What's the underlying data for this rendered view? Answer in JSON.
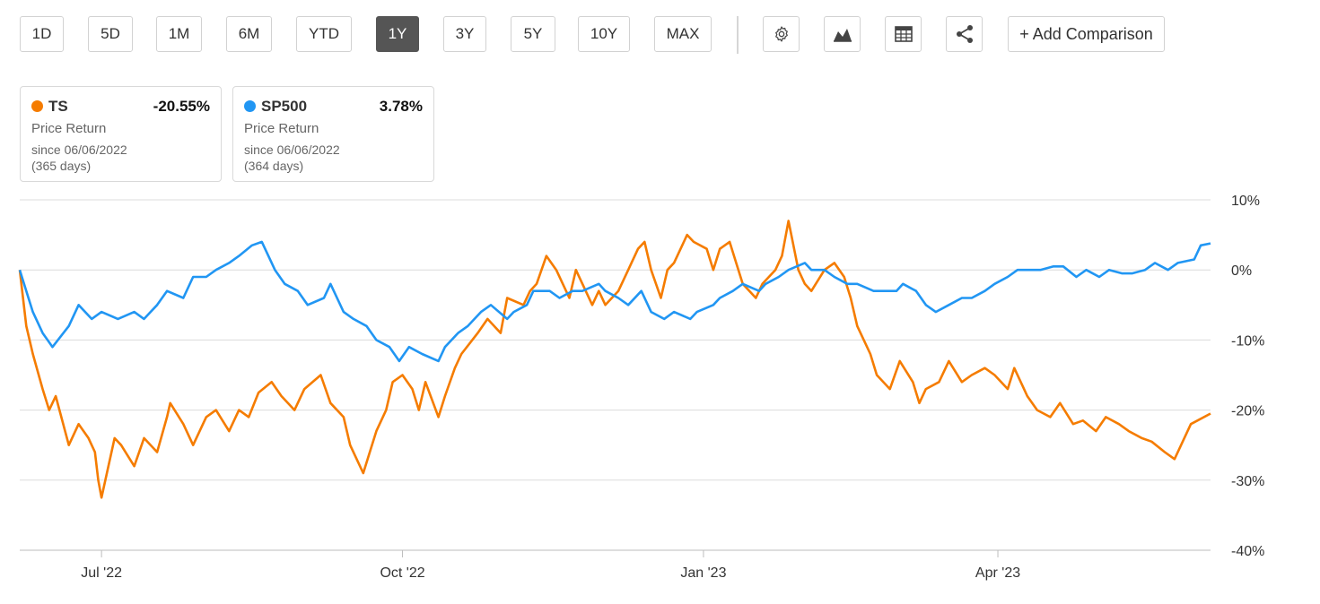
{
  "toolbar": {
    "ranges": [
      "1D",
      "5D",
      "1M",
      "6M",
      "YTD",
      "1Y",
      "3Y",
      "5Y",
      "10Y",
      "MAX"
    ],
    "active_range": "1Y",
    "icons": [
      "gear-icon",
      "chart-type-icon",
      "table-icon",
      "share-icon"
    ],
    "add_comparison_label": "+ Add Comparison"
  },
  "cards": [
    {
      "symbol": "TS",
      "change": "-20.55%",
      "label": "Price Return",
      "since": "since 06/06/2022",
      "days": "(365 days)",
      "color": "#f57c00"
    },
    {
      "symbol": "SP500",
      "change": "3.78%",
      "label": "Price Return",
      "since": "since 06/06/2022",
      "days": "(364 days)",
      "color": "#2196f3"
    }
  ],
  "chart_data": {
    "type": "line",
    "x_start": "2022-06-06",
    "x_end": "2023-06-05",
    "y_unit": "%",
    "ylim": [
      -40,
      10
    ],
    "yticks": [
      10,
      0,
      -10,
      -20,
      -30,
      -40
    ],
    "ytick_labels": [
      "10%",
      "0%",
      "-10%",
      "-20%",
      "-30%",
      "-40%"
    ],
    "xticks": [
      "2022-07-01",
      "2022-10-01",
      "2023-01-01",
      "2023-04-01"
    ],
    "xtick_labels": [
      "Jul '22",
      "Oct '22",
      "Jan '23",
      "Apr '23"
    ],
    "grid": true,
    "series": [
      {
        "name": "TS",
        "color": "#f57c00",
        "points": [
          [
            "2022-06-06",
            0
          ],
          [
            "2022-06-08",
            -8
          ],
          [
            "2022-06-10",
            -12
          ],
          [
            "2022-06-13",
            -17
          ],
          [
            "2022-06-15",
            -20
          ],
          [
            "2022-06-17",
            -18
          ],
          [
            "2022-06-21",
            -25
          ],
          [
            "2022-06-24",
            -22
          ],
          [
            "2022-06-27",
            -24
          ],
          [
            "2022-06-29",
            -26
          ],
          [
            "2022-06-30",
            -30
          ],
          [
            "2022-07-01",
            -32.5
          ],
          [
            "2022-07-05",
            -24
          ],
          [
            "2022-07-07",
            -25
          ],
          [
            "2022-07-11",
            -28
          ],
          [
            "2022-07-14",
            -24
          ],
          [
            "2022-07-18",
            -26
          ],
          [
            "2022-07-21",
            -21
          ],
          [
            "2022-07-22",
            -19
          ],
          [
            "2022-07-26",
            -22
          ],
          [
            "2022-07-29",
            -25
          ],
          [
            "2022-08-02",
            -21
          ],
          [
            "2022-08-05",
            -20
          ],
          [
            "2022-08-09",
            -23
          ],
          [
            "2022-08-12",
            -20
          ],
          [
            "2022-08-15",
            -21
          ],
          [
            "2022-08-18",
            -17.5
          ],
          [
            "2022-08-22",
            -16
          ],
          [
            "2022-08-25",
            -18
          ],
          [
            "2022-08-29",
            -20
          ],
          [
            "2022-09-01",
            -17
          ],
          [
            "2022-09-06",
            -15
          ],
          [
            "2022-09-09",
            -19
          ],
          [
            "2022-09-13",
            -21
          ],
          [
            "2022-09-15",
            -25
          ],
          [
            "2022-09-19",
            -29
          ],
          [
            "2022-09-21",
            -26
          ],
          [
            "2022-09-23",
            -23
          ],
          [
            "2022-09-26",
            -20
          ],
          [
            "2022-09-28",
            -16
          ],
          [
            "2022-10-01",
            -15
          ],
          [
            "2022-10-04",
            -17
          ],
          [
            "2022-10-06",
            -20
          ],
          [
            "2022-10-08",
            -16
          ],
          [
            "2022-10-12",
            -21
          ],
          [
            "2022-10-14",
            -18
          ],
          [
            "2022-10-17",
            -14
          ],
          [
            "2022-10-19",
            -12
          ],
          [
            "2022-10-24",
            -9
          ],
          [
            "2022-10-27",
            -7
          ],
          [
            "2022-10-31",
            -9
          ],
          [
            "2022-11-02",
            -4
          ],
          [
            "2022-11-07",
            -5
          ],
          [
            "2022-11-09",
            -3
          ],
          [
            "2022-11-11",
            -2
          ],
          [
            "2022-11-14",
            2
          ],
          [
            "2022-11-17",
            0
          ],
          [
            "2022-11-21",
            -4
          ],
          [
            "2022-11-23",
            0
          ],
          [
            "2022-11-28",
            -5
          ],
          [
            "2022-11-30",
            -3
          ],
          [
            "2022-12-02",
            -5
          ],
          [
            "2022-12-06",
            -3
          ],
          [
            "2022-12-09",
            0
          ],
          [
            "2022-12-12",
            3
          ],
          [
            "2022-12-14",
            4
          ],
          [
            "2022-12-16",
            0
          ],
          [
            "2022-12-19",
            -4
          ],
          [
            "2022-12-21",
            0
          ],
          [
            "2022-12-23",
            1
          ],
          [
            "2022-12-27",
            5
          ],
          [
            "2022-12-29",
            4
          ],
          [
            "2023-01-02",
            3
          ],
          [
            "2023-01-04",
            0
          ],
          [
            "2023-01-06",
            3
          ],
          [
            "2023-01-09",
            4
          ],
          [
            "2023-01-11",
            1
          ],
          [
            "2023-01-13",
            -2
          ],
          [
            "2023-01-17",
            -4
          ],
          [
            "2023-01-19",
            -2
          ],
          [
            "2023-01-23",
            0
          ],
          [
            "2023-01-25",
            2
          ],
          [
            "2023-01-27",
            7
          ],
          [
            "2023-01-30",
            0
          ],
          [
            "2023-02-01",
            -2
          ],
          [
            "2023-02-03",
            -3
          ],
          [
            "2023-02-07",
            0
          ],
          [
            "2023-02-10",
            1
          ],
          [
            "2023-02-13",
            -1
          ],
          [
            "2023-02-15",
            -4
          ],
          [
            "2023-02-17",
            -8
          ],
          [
            "2023-02-21",
            -12
          ],
          [
            "2023-02-23",
            -15
          ],
          [
            "2023-02-27",
            -17
          ],
          [
            "2023-03-02",
            -13
          ],
          [
            "2023-03-06",
            -16
          ],
          [
            "2023-03-08",
            -19
          ],
          [
            "2023-03-10",
            -17
          ],
          [
            "2023-03-14",
            -16
          ],
          [
            "2023-03-17",
            -13
          ],
          [
            "2023-03-21",
            -16
          ],
          [
            "2023-03-24",
            -15
          ],
          [
            "2023-03-28",
            -14
          ],
          [
            "2023-03-31",
            -15
          ],
          [
            "2023-04-04",
            -17
          ],
          [
            "2023-04-06",
            -14
          ],
          [
            "2023-04-10",
            -18
          ],
          [
            "2023-04-13",
            -20
          ],
          [
            "2023-04-17",
            -21
          ],
          [
            "2023-04-20",
            -19
          ],
          [
            "2023-04-24",
            -22
          ],
          [
            "2023-04-27",
            -21.5
          ],
          [
            "2023-05-01",
            -23
          ],
          [
            "2023-05-04",
            -21
          ],
          [
            "2023-05-08",
            -22
          ],
          [
            "2023-05-11",
            -23
          ],
          [
            "2023-05-15",
            -24
          ],
          [
            "2023-05-18",
            -24.5
          ],
          [
            "2023-05-22",
            -26
          ],
          [
            "2023-05-25",
            -27
          ],
          [
            "2023-05-30",
            -22
          ],
          [
            "2023-06-01",
            -21.5
          ],
          [
            "2023-06-05",
            -20.5
          ]
        ]
      },
      {
        "name": "SP500",
        "color": "#2196f3",
        "points": [
          [
            "2022-06-06",
            0
          ],
          [
            "2022-06-08",
            -3
          ],
          [
            "2022-06-10",
            -6
          ],
          [
            "2022-06-13",
            -9
          ],
          [
            "2022-06-16",
            -11
          ],
          [
            "2022-06-21",
            -8
          ],
          [
            "2022-06-24",
            -5
          ],
          [
            "2022-06-28",
            -7
          ],
          [
            "2022-07-01",
            -6
          ],
          [
            "2022-07-06",
            -7
          ],
          [
            "2022-07-11",
            -6
          ],
          [
            "2022-07-14",
            -7
          ],
          [
            "2022-07-18",
            -5
          ],
          [
            "2022-07-21",
            -3
          ],
          [
            "2022-07-26",
            -4
          ],
          [
            "2022-07-29",
            -1
          ],
          [
            "2022-08-02",
            -1
          ],
          [
            "2022-08-05",
            0
          ],
          [
            "2022-08-09",
            1
          ],
          [
            "2022-08-12",
            2
          ],
          [
            "2022-08-16",
            3.5
          ],
          [
            "2022-08-19",
            4
          ],
          [
            "2022-08-23",
            0
          ],
          [
            "2022-08-26",
            -2
          ],
          [
            "2022-08-30",
            -3
          ],
          [
            "2022-09-02",
            -5
          ],
          [
            "2022-09-07",
            -4
          ],
          [
            "2022-09-09",
            -2
          ],
          [
            "2022-09-13",
            -6
          ],
          [
            "2022-09-16",
            -7
          ],
          [
            "2022-09-20",
            -8
          ],
          [
            "2022-09-23",
            -10
          ],
          [
            "2022-09-27",
            -11
          ],
          [
            "2022-09-30",
            -13
          ],
          [
            "2022-10-03",
            -11
          ],
          [
            "2022-10-07",
            -12
          ],
          [
            "2022-10-12",
            -13
          ],
          [
            "2022-10-14",
            -11
          ],
          [
            "2022-10-18",
            -9
          ],
          [
            "2022-10-21",
            -8
          ],
          [
            "2022-10-25",
            -6
          ],
          [
            "2022-10-28",
            -5
          ],
          [
            "2022-11-02",
            -7
          ],
          [
            "2022-11-04",
            -6
          ],
          [
            "2022-11-08",
            -5
          ],
          [
            "2022-11-10",
            -3
          ],
          [
            "2022-11-15",
            -3
          ],
          [
            "2022-11-18",
            -4
          ],
          [
            "2022-11-22",
            -3
          ],
          [
            "2022-11-25",
            -3
          ],
          [
            "2022-11-30",
            -2
          ],
          [
            "2022-12-02",
            -3
          ],
          [
            "2022-12-06",
            -4
          ],
          [
            "2022-12-09",
            -5
          ],
          [
            "2022-12-13",
            -3
          ],
          [
            "2022-12-16",
            -6
          ],
          [
            "2022-12-20",
            -7
          ],
          [
            "2022-12-23",
            -6
          ],
          [
            "2022-12-28",
            -7
          ],
          [
            "2022-12-30",
            -6
          ],
          [
            "2023-01-04",
            -5
          ],
          [
            "2023-01-06",
            -4
          ],
          [
            "2023-01-10",
            -3
          ],
          [
            "2023-01-13",
            -2
          ],
          [
            "2023-01-18",
            -3
          ],
          [
            "2023-01-20",
            -2
          ],
          [
            "2023-01-24",
            -1
          ],
          [
            "2023-01-27",
            0
          ],
          [
            "2023-02-01",
            1
          ],
          [
            "2023-02-03",
            0
          ],
          [
            "2023-02-07",
            0
          ],
          [
            "2023-02-10",
            -1
          ],
          [
            "2023-02-14",
            -2
          ],
          [
            "2023-02-17",
            -2
          ],
          [
            "2023-02-22",
            -3
          ],
          [
            "2023-02-24",
            -3
          ],
          [
            "2023-03-01",
            -3
          ],
          [
            "2023-03-03",
            -2
          ],
          [
            "2023-03-07",
            -3
          ],
          [
            "2023-03-10",
            -5
          ],
          [
            "2023-03-13",
            -6
          ],
          [
            "2023-03-17",
            -5
          ],
          [
            "2023-03-21",
            -4
          ],
          [
            "2023-03-24",
            -4
          ],
          [
            "2023-03-28",
            -3
          ],
          [
            "2023-03-31",
            -2
          ],
          [
            "2023-04-04",
            -1
          ],
          [
            "2023-04-07",
            0
          ],
          [
            "2023-04-11",
            0
          ],
          [
            "2023-04-14",
            0
          ],
          [
            "2023-04-18",
            0.5
          ],
          [
            "2023-04-21",
            0.5
          ],
          [
            "2023-04-25",
            -1
          ],
          [
            "2023-04-28",
            0
          ],
          [
            "2023-05-02",
            -1
          ],
          [
            "2023-05-05",
            0
          ],
          [
            "2023-05-09",
            -0.5
          ],
          [
            "2023-05-12",
            -0.5
          ],
          [
            "2023-05-16",
            0
          ],
          [
            "2023-05-19",
            1
          ],
          [
            "2023-05-23",
            0
          ],
          [
            "2023-05-26",
            1
          ],
          [
            "2023-05-31",
            1.5
          ],
          [
            "2023-06-02",
            3.5
          ],
          [
            "2023-06-05",
            3.78
          ]
        ]
      }
    ]
  }
}
